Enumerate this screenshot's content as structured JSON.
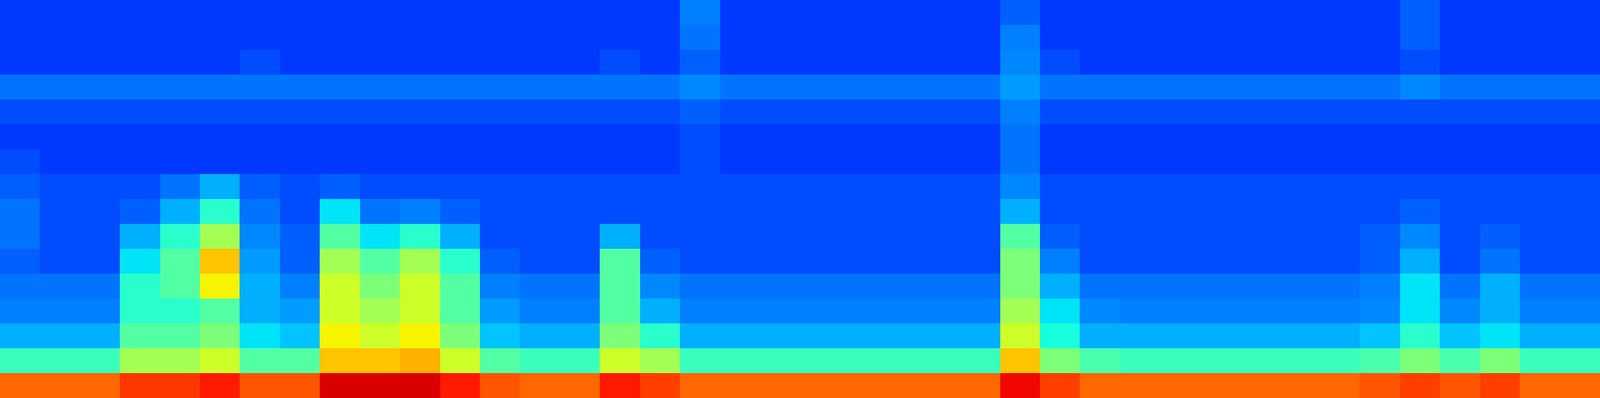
{
  "chart_data": {
    "type": "heatmap",
    "tick_labels": false,
    "color": "jet",
    "color_range": [
      0,
      1
    ],
    "cells": [
      [
        0.18,
        0.18,
        0.18,
        0.18,
        0.18,
        0.18,
        0.18,
        0.18,
        0.18,
        0.18,
        0.18,
        0.18,
        0.18,
        0.18,
        0.18,
        0.18,
        0.18,
        0.25,
        0.18,
        0.18,
        0.18,
        0.18,
        0.18,
        0.18,
        0.18,
        0.22,
        0.18,
        0.18,
        0.18,
        0.18,
        0.18,
        0.18,
        0.18,
        0.18,
        0.18,
        0.22,
        0.18,
        0.18,
        0.18,
        0.18
      ],
      [
        0.18,
        0.18,
        0.18,
        0.18,
        0.18,
        0.18,
        0.18,
        0.18,
        0.18,
        0.18,
        0.18,
        0.18,
        0.18,
        0.18,
        0.18,
        0.18,
        0.18,
        0.24,
        0.18,
        0.18,
        0.18,
        0.18,
        0.18,
        0.18,
        0.18,
        0.25,
        0.18,
        0.18,
        0.18,
        0.18,
        0.18,
        0.18,
        0.18,
        0.18,
        0.18,
        0.22,
        0.18,
        0.18,
        0.18,
        0.18
      ],
      [
        0.18,
        0.18,
        0.18,
        0.18,
        0.18,
        0.18,
        0.2,
        0.18,
        0.18,
        0.18,
        0.18,
        0.18,
        0.18,
        0.18,
        0.18,
        0.2,
        0.18,
        0.22,
        0.18,
        0.18,
        0.18,
        0.18,
        0.18,
        0.18,
        0.18,
        0.26,
        0.2,
        0.18,
        0.18,
        0.18,
        0.18,
        0.18,
        0.18,
        0.18,
        0.18,
        0.2,
        0.18,
        0.18,
        0.18,
        0.18
      ],
      [
        0.24,
        0.24,
        0.24,
        0.24,
        0.24,
        0.24,
        0.24,
        0.24,
        0.24,
        0.24,
        0.24,
        0.24,
        0.24,
        0.24,
        0.24,
        0.24,
        0.24,
        0.26,
        0.24,
        0.24,
        0.24,
        0.24,
        0.24,
        0.24,
        0.24,
        0.28,
        0.24,
        0.24,
        0.24,
        0.24,
        0.24,
        0.24,
        0.24,
        0.24,
        0.24,
        0.26,
        0.24,
        0.24,
        0.24,
        0.24
      ],
      [
        0.2,
        0.2,
        0.2,
        0.2,
        0.2,
        0.2,
        0.2,
        0.2,
        0.2,
        0.2,
        0.2,
        0.2,
        0.2,
        0.2,
        0.2,
        0.2,
        0.2,
        0.22,
        0.2,
        0.2,
        0.2,
        0.2,
        0.2,
        0.2,
        0.2,
        0.25,
        0.2,
        0.2,
        0.2,
        0.2,
        0.2,
        0.2,
        0.2,
        0.2,
        0.2,
        0.2,
        0.2,
        0.2,
        0.2,
        0.2
      ],
      [
        0.18,
        0.18,
        0.18,
        0.18,
        0.18,
        0.18,
        0.18,
        0.18,
        0.18,
        0.18,
        0.18,
        0.18,
        0.18,
        0.18,
        0.18,
        0.18,
        0.18,
        0.2,
        0.18,
        0.18,
        0.18,
        0.18,
        0.18,
        0.18,
        0.18,
        0.24,
        0.18,
        0.18,
        0.18,
        0.18,
        0.18,
        0.18,
        0.18,
        0.18,
        0.18,
        0.18,
        0.18,
        0.18,
        0.18,
        0.18
      ],
      [
        0.2,
        0.18,
        0.18,
        0.18,
        0.18,
        0.18,
        0.18,
        0.18,
        0.18,
        0.18,
        0.18,
        0.18,
        0.18,
        0.18,
        0.18,
        0.18,
        0.18,
        0.2,
        0.18,
        0.18,
        0.18,
        0.18,
        0.18,
        0.18,
        0.18,
        0.24,
        0.18,
        0.18,
        0.18,
        0.18,
        0.18,
        0.18,
        0.18,
        0.18,
        0.18,
        0.18,
        0.18,
        0.18,
        0.18,
        0.18
      ],
      [
        0.22,
        0.2,
        0.2,
        0.2,
        0.24,
        0.3,
        0.22,
        0.2,
        0.22,
        0.2,
        0.2,
        0.2,
        0.2,
        0.2,
        0.2,
        0.2,
        0.2,
        0.2,
        0.2,
        0.2,
        0.2,
        0.2,
        0.2,
        0.2,
        0.2,
        0.26,
        0.2,
        0.2,
        0.2,
        0.2,
        0.2,
        0.2,
        0.2,
        0.2,
        0.2,
        0.2,
        0.2,
        0.2,
        0.2,
        0.2
      ],
      [
        0.24,
        0.2,
        0.2,
        0.22,
        0.3,
        0.4,
        0.24,
        0.2,
        0.35,
        0.24,
        0.25,
        0.22,
        0.2,
        0.2,
        0.2,
        0.2,
        0.2,
        0.2,
        0.2,
        0.2,
        0.2,
        0.2,
        0.2,
        0.2,
        0.2,
        0.3,
        0.2,
        0.2,
        0.2,
        0.2,
        0.2,
        0.2,
        0.2,
        0.2,
        0.2,
        0.22,
        0.2,
        0.2,
        0.2,
        0.2
      ],
      [
        0.24,
        0.2,
        0.2,
        0.3,
        0.4,
        0.55,
        0.26,
        0.22,
        0.45,
        0.35,
        0.4,
        0.3,
        0.2,
        0.2,
        0.2,
        0.3,
        0.2,
        0.2,
        0.2,
        0.2,
        0.2,
        0.2,
        0.2,
        0.2,
        0.2,
        0.45,
        0.22,
        0.2,
        0.2,
        0.2,
        0.2,
        0.2,
        0.2,
        0.2,
        0.22,
        0.26,
        0.2,
        0.22,
        0.2,
        0.2
      ],
      [
        0.22,
        0.2,
        0.2,
        0.35,
        0.45,
        0.7,
        0.28,
        0.22,
        0.55,
        0.45,
        0.55,
        0.4,
        0.22,
        0.2,
        0.2,
        0.45,
        0.22,
        0.2,
        0.2,
        0.2,
        0.2,
        0.2,
        0.2,
        0.2,
        0.2,
        0.5,
        0.25,
        0.2,
        0.2,
        0.2,
        0.2,
        0.2,
        0.2,
        0.2,
        0.22,
        0.3,
        0.2,
        0.24,
        0.2,
        0.2
      ],
      [
        0.24,
        0.24,
        0.24,
        0.4,
        0.45,
        0.65,
        0.3,
        0.25,
        0.6,
        0.5,
        0.6,
        0.45,
        0.25,
        0.24,
        0.24,
        0.45,
        0.26,
        0.24,
        0.24,
        0.24,
        0.24,
        0.24,
        0.24,
        0.24,
        0.24,
        0.5,
        0.3,
        0.24,
        0.24,
        0.24,
        0.24,
        0.24,
        0.24,
        0.24,
        0.25,
        0.35,
        0.24,
        0.3,
        0.24,
        0.24
      ],
      [
        0.25,
        0.25,
        0.25,
        0.4,
        0.4,
        0.45,
        0.3,
        0.28,
        0.6,
        0.55,
        0.6,
        0.45,
        0.28,
        0.25,
        0.25,
        0.45,
        0.3,
        0.25,
        0.25,
        0.25,
        0.25,
        0.25,
        0.25,
        0.25,
        0.25,
        0.55,
        0.35,
        0.26,
        0.25,
        0.25,
        0.25,
        0.25,
        0.25,
        0.25,
        0.26,
        0.35,
        0.26,
        0.3,
        0.25,
        0.25
      ],
      [
        0.3,
        0.3,
        0.3,
        0.45,
        0.45,
        0.5,
        0.35,
        0.32,
        0.65,
        0.6,
        0.65,
        0.5,
        0.32,
        0.3,
        0.3,
        0.5,
        0.4,
        0.3,
        0.3,
        0.3,
        0.3,
        0.3,
        0.3,
        0.3,
        0.3,
        0.6,
        0.38,
        0.3,
        0.3,
        0.3,
        0.3,
        0.3,
        0.3,
        0.3,
        0.32,
        0.4,
        0.32,
        0.35,
        0.3,
        0.3
      ],
      [
        0.42,
        0.42,
        0.42,
        0.55,
        0.55,
        0.6,
        0.45,
        0.45,
        0.7,
        0.7,
        0.72,
        0.6,
        0.45,
        0.42,
        0.42,
        0.6,
        0.55,
        0.42,
        0.42,
        0.42,
        0.42,
        0.42,
        0.42,
        0.42,
        0.42,
        0.7,
        0.5,
        0.44,
        0.42,
        0.42,
        0.42,
        0.42,
        0.42,
        0.42,
        0.44,
        0.5,
        0.44,
        0.5,
        0.42,
        0.42
      ],
      [
        0.8,
        0.8,
        0.8,
        0.85,
        0.85,
        0.88,
        0.82,
        0.82,
        0.92,
        0.92,
        0.92,
        0.88,
        0.82,
        0.8,
        0.8,
        0.88,
        0.84,
        0.8,
        0.8,
        0.8,
        0.8,
        0.8,
        0.8,
        0.8,
        0.8,
        0.9,
        0.84,
        0.8,
        0.8,
        0.8,
        0.8,
        0.8,
        0.8,
        0.8,
        0.82,
        0.84,
        0.82,
        0.84,
        0.8,
        0.8
      ]
    ]
  }
}
